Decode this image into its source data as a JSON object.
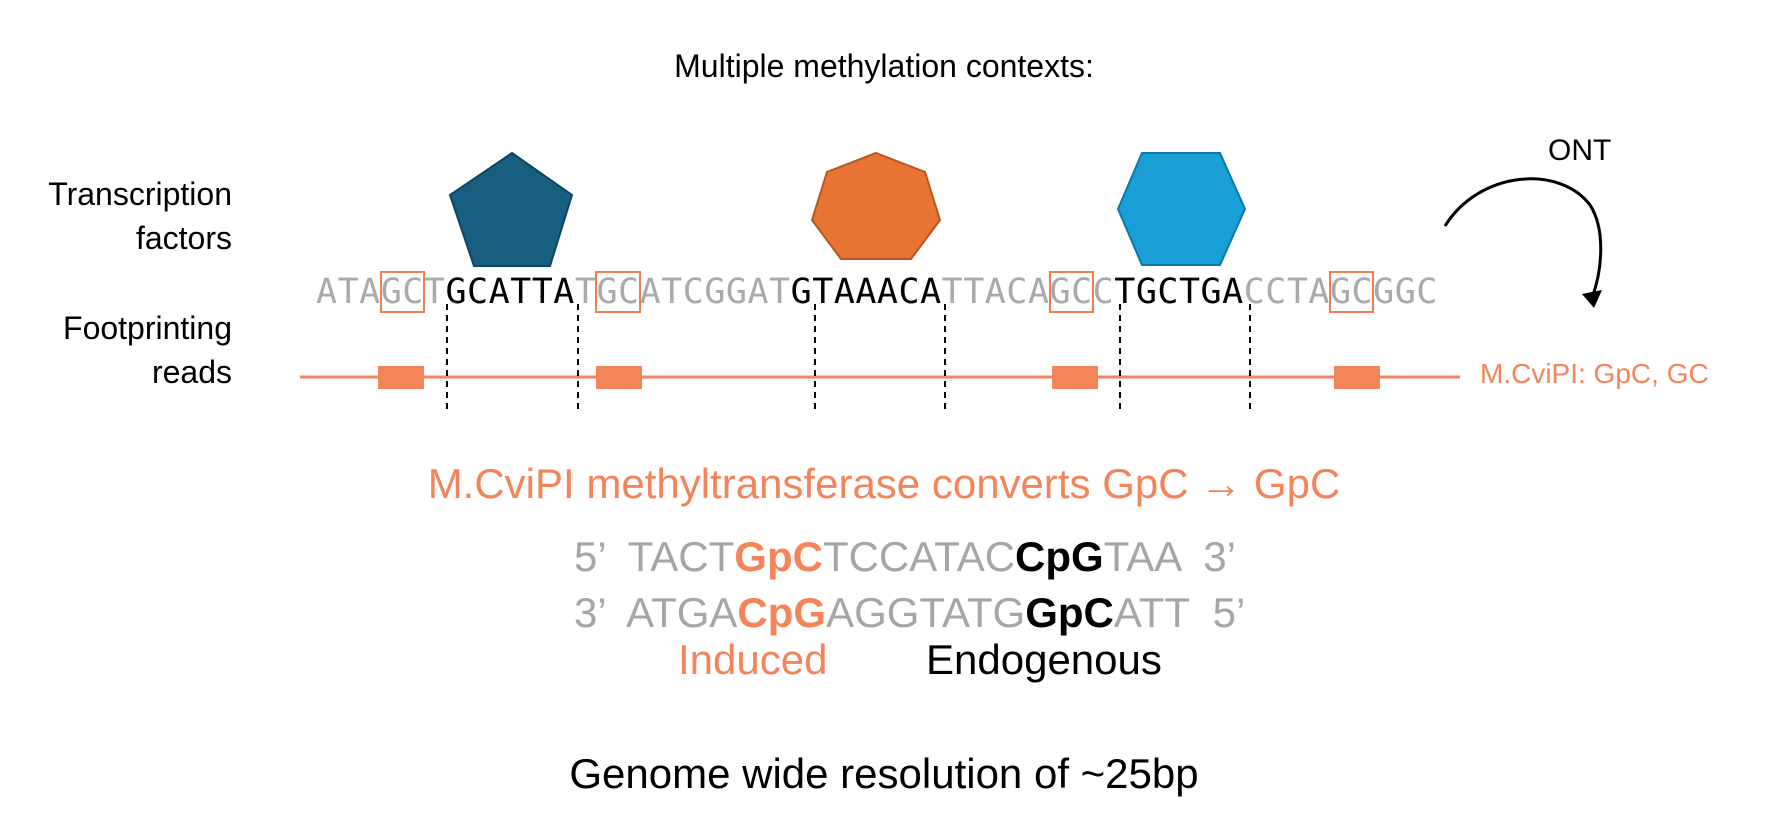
{
  "title": "Multiple methylation contexts:",
  "labels": {
    "tf_line1": "Transcription",
    "tf_line2": "factors",
    "fp_line1": "Footprinting",
    "fp_line2": "reads"
  },
  "sequence": [
    {
      "t": "ATA",
      "k": "n"
    },
    {
      "t": "GC",
      "k": "gc"
    },
    {
      "t": "T",
      "k": "n"
    },
    {
      "t": "GCATTA",
      "k": "tf"
    },
    {
      "t": "T",
      "k": "n"
    },
    {
      "t": "GC",
      "k": "gc"
    },
    {
      "t": "ATCGGAT",
      "k": "n"
    },
    {
      "t": "GTAAACA",
      "k": "tf"
    },
    {
      "t": "TTACA",
      "k": "n"
    },
    {
      "t": "GC",
      "k": "gc"
    },
    {
      "t": "C",
      "k": "n"
    },
    {
      "t": "TGCTGA",
      "k": "tf"
    },
    {
      "t": "CCTA",
      "k": "n"
    },
    {
      "t": "GC",
      "k": "gc"
    },
    {
      "t": "GGC",
      "k": "n"
    }
  ],
  "ont_label": "ONT",
  "read_label": "M.CviPI: GpC, GC",
  "headline": "M.CviPI methyltransferase converts GpC → GpC",
  "strand_top": {
    "start": "5’",
    "a": "TACT",
    "induced": "GpC",
    "b": "TCCATAC",
    "endogenous": "CpG",
    "c": "TAA",
    "end": "3’"
  },
  "strand_bottom": {
    "start": "3’",
    "a": "ATGA",
    "induced": "CpG",
    "b": "AGGTATG",
    "endogenous": "GpC",
    "c": "ATT",
    "end": "5’"
  },
  "induced_label": "Induced",
  "endogenous_label": "Endogenous",
  "footer": "Genome wide resolution of ~25bp",
  "colors": {
    "accent": "#f4845a",
    "pentagon": "#175e80",
    "heptagon": "#e87434",
    "hexagon": "#1a9ed6",
    "muted": "#a6a6a6"
  },
  "icons": [
    "pentagon-shape",
    "heptagon-shape",
    "hexagon-shape",
    "curved-arrow-icon"
  ]
}
